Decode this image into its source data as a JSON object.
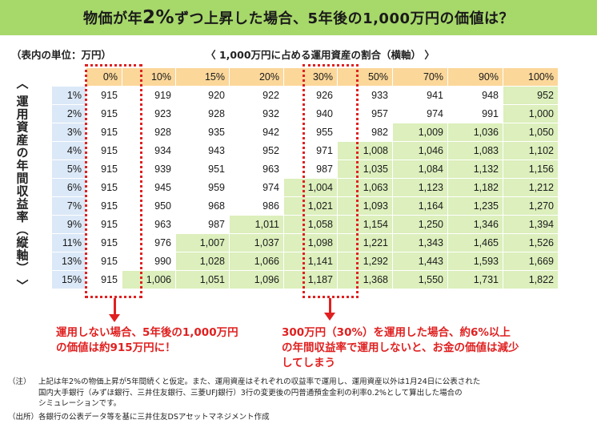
{
  "title": {
    "prefix": "物価が年",
    "rate": "2%",
    "suffix": "ずつ上昇した場合、5年後の1,000万円の価値は？"
  },
  "unit_label": "（表内の単位：万円）",
  "h_axis_label": "〈 1,000万円に占める運用資産の割合（横軸） 〉",
  "v_axis_label": "〈 運用資産の年間収益率（縦軸） 〉",
  "columns": [
    "0%",
    "10%",
    "15%",
    "20%",
    "30%",
    "50%",
    "70%",
    "90%",
    "100%"
  ],
  "rows": [
    {
      "rate": "1%",
      "values": [
        "915",
        "919",
        "920",
        "922",
        "926",
        "933",
        "941",
        "948",
        "952"
      ],
      "green_from": 8
    },
    {
      "rate": "2%",
      "values": [
        "915",
        "923",
        "928",
        "932",
        "940",
        "957",
        "974",
        "991",
        "1,000"
      ],
      "green_from": 8
    },
    {
      "rate": "3%",
      "values": [
        "915",
        "928",
        "935",
        "942",
        "955",
        "982",
        "1,009",
        "1,036",
        "1,050"
      ],
      "green_from": 6
    },
    {
      "rate": "4%",
      "values": [
        "915",
        "934",
        "943",
        "952",
        "971",
        "1,008",
        "1,046",
        "1,083",
        "1,102"
      ],
      "green_from": 5
    },
    {
      "rate": "5%",
      "values": [
        "915",
        "939",
        "951",
        "963",
        "987",
        "1,035",
        "1,084",
        "1,132",
        "1,156"
      ],
      "green_from": 5
    },
    {
      "rate": "6%",
      "values": [
        "915",
        "945",
        "959",
        "974",
        "1,004",
        "1,063",
        "1,123",
        "1,182",
        "1,212"
      ],
      "green_from": 4
    },
    {
      "rate": "7%",
      "values": [
        "915",
        "950",
        "968",
        "986",
        "1,021",
        "1,093",
        "1,164",
        "1,235",
        "1,270"
      ],
      "green_from": 4
    },
    {
      "rate": "9%",
      "values": [
        "915",
        "963",
        "987",
        "1,011",
        "1,058",
        "1,154",
        "1,250",
        "1,346",
        "1,394"
      ],
      "green_from": 3
    },
    {
      "rate": "11%",
      "values": [
        "915",
        "976",
        "1,007",
        "1,037",
        "1,098",
        "1,221",
        "1,343",
        "1,465",
        "1,526"
      ],
      "green_from": 2
    },
    {
      "rate": "13%",
      "values": [
        "915",
        "990",
        "1,028",
        "1,066",
        "1,141",
        "1,292",
        "1,443",
        "1,593",
        "1,669"
      ],
      "green_from": 2
    },
    {
      "rate": "15%",
      "values": [
        "915",
        "1,006",
        "1,051",
        "1,096",
        "1,187",
        "1,368",
        "1,550",
        "1,731",
        "1,822"
      ],
      "green_from": 1
    }
  ],
  "callouts": {
    "left": [
      "運用しない場合、5年後の1,000万円",
      "の価値は約915万円に！"
    ],
    "right": [
      "300万円（30%）を運用した場合、約6%以上",
      "の年間収益率で運用しないと、お金の価値は減少",
      "してしまう"
    ]
  },
  "notes": [
    {
      "label": "（注）",
      "lines": [
        "上記は年2%の物価上昇が5年間続くと仮定。また、運用資産はそれぞれの収益率で運用し、運用資産以外は1月24日に公表された",
        "国内大手銀行（みずほ銀行、三井住友銀行、三菱UFJ銀行）3行の変更後の円普通預金金利の利率0.2%として算出した場合の",
        "シミュレーションです。"
      ]
    },
    {
      "label": "（出所）",
      "lines": [
        "各銀行の公表データ等を基に三井住友DSアセットマネジメント作成"
      ]
    }
  ],
  "colors": {
    "title_bg": "#a7d86a",
    "header_bg": "#fbd79a",
    "rowhead_bg": "#dbe8f7",
    "green_cell": "#dcefbc",
    "accent_red": "#e02020"
  }
}
